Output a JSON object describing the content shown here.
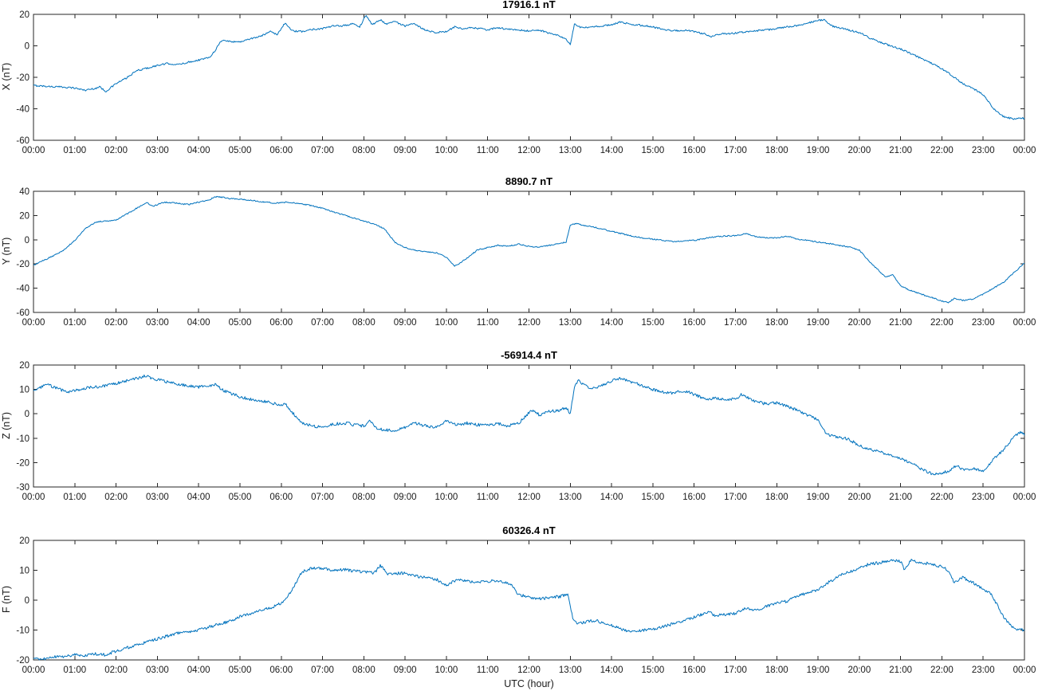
{
  "figure": {
    "xlabel": "UTC (hour)",
    "line_color": "#0072BD",
    "axis_color": "#262626",
    "text_color": "#1a1a1a",
    "background": "#ffffff"
  },
  "x_tick_labels": [
    "00:00",
    "01:00",
    "02:00",
    "03:00",
    "04:00",
    "05:00",
    "06:00",
    "07:00",
    "08:00",
    "09:00",
    "10:00",
    "11:00",
    "12:00",
    "13:00",
    "14:00",
    "15:00",
    "16:00",
    "17:00",
    "18:00",
    "19:00",
    "20:00",
    "21:00",
    "22:00",
    "23:00",
    "00:00"
  ],
  "chart_data": [
    {
      "type": "line",
      "title": "17916.1 nT",
      "ylabel": "X (nT)",
      "xlim": [
        0,
        24
      ],
      "ylim": [
        -60,
        20
      ],
      "yticks": [
        20,
        0,
        -20,
        -40,
        -60
      ],
      "grid": false,
      "legend": "none",
      "noise_amplitude": 0.55,
      "x": [
        0,
        0.25,
        0.5,
        0.75,
        1,
        1.25,
        1.5,
        1.6,
        1.75,
        2,
        2.25,
        2.5,
        2.75,
        3,
        3.25,
        3.5,
        3.75,
        4,
        4.25,
        4.4,
        4.5,
        4.6,
        4.75,
        5,
        5.25,
        5.5,
        5.75,
        5.9,
        6.1,
        6.25,
        6.5,
        6.75,
        7,
        7.25,
        7.5,
        7.75,
        7.9,
        8.05,
        8.2,
        8.4,
        8.55,
        8.75,
        9,
        9.2,
        9.5,
        9.75,
        10,
        10.2,
        10.4,
        10.6,
        10.8,
        11,
        11.2,
        11.5,
        11.75,
        12,
        12.25,
        12.5,
        12.75,
        12.9,
        13,
        13.1,
        13.25,
        13.5,
        13.75,
        14,
        14.2,
        14.5,
        14.75,
        15,
        15.25,
        15.5,
        15.75,
        16,
        16.25,
        16.4,
        16.6,
        17,
        17.25,
        17.5,
        17.75,
        18,
        18.25,
        18.5,
        18.75,
        19,
        19.15,
        19.3,
        19.5,
        19.75,
        20,
        20.25,
        20.5,
        20.75,
        21,
        21.25,
        21.5,
        21.75,
        22,
        22.25,
        22.5,
        22.75,
        23,
        23.25,
        23.5,
        23.75,
        24
      ],
      "values": [
        -25.2,
        -25.6,
        -26,
        -26.2,
        -26.8,
        -28.2,
        -27,
        -26,
        -29,
        -24,
        -20.5,
        -15.8,
        -14.2,
        -12.5,
        -11.2,
        -12,
        -10.4,
        -9,
        -7.5,
        -3,
        1.8,
        3.5,
        2.8,
        2.5,
        4.5,
        6,
        9.5,
        7,
        14.8,
        9.5,
        9,
        10.5,
        11,
        12.5,
        12.8,
        14,
        12,
        19.5,
        13.5,
        16.5,
        14,
        15.5,
        12.5,
        14,
        10,
        8.5,
        9,
        12,
        10.5,
        11.5,
        11,
        10,
        11.5,
        10.5,
        10,
        9.5,
        10,
        8,
        6,
        4,
        0.8,
        13.8,
        11.5,
        11.8,
        12.5,
        13.5,
        15,
        13.5,
        13,
        12,
        10.5,
        9.5,
        10,
        9,
        7.5,
        5.5,
        7.5,
        8,
        9,
        9.5,
        10,
        11,
        12,
        13,
        14.5,
        16,
        16.5,
        13,
        11.5,
        10,
        8.5,
        5,
        2.5,
        0,
        -2,
        -5,
        -8,
        -11,
        -14.5,
        -19,
        -24,
        -27,
        -31,
        -40,
        -45,
        -46.5,
        -46
      ]
    },
    {
      "type": "line",
      "title": "8890.7 nT",
      "ylabel": "Y (nT)",
      "xlim": [
        0,
        24
      ],
      "ylim": [
        -60,
        40
      ],
      "yticks": [
        40,
        20,
        0,
        -20,
        -40,
        -60
      ],
      "grid": false,
      "legend": "none",
      "noise_amplitude": 0.5,
      "x": [
        0,
        0.25,
        0.5,
        0.75,
        1,
        1.25,
        1.5,
        1.75,
        2,
        2.25,
        2.5,
        2.75,
        2.9,
        3.1,
        3.25,
        3.5,
        3.75,
        4,
        4.25,
        4.45,
        4.75,
        5,
        5.25,
        5.5,
        5.75,
        6,
        6.15,
        6.5,
        6.75,
        7,
        7.25,
        7.5,
        7.65,
        8,
        8.25,
        8.5,
        8.75,
        9,
        9.25,
        9.5,
        9.75,
        10,
        10.2,
        10.35,
        10.5,
        10.75,
        11,
        11.25,
        11.5,
        11.75,
        12,
        12.25,
        12.5,
        12.75,
        12.9,
        13,
        13.15,
        13.3,
        13.5,
        13.75,
        14,
        14.25,
        14.5,
        14.75,
        15,
        15.25,
        15.5,
        15.75,
        16,
        16.25,
        16.5,
        16.75,
        17,
        17.25,
        17.5,
        17.75,
        18,
        18.25,
        18.5,
        18.75,
        19,
        19.25,
        19.5,
        19.75,
        20,
        20.25,
        20.5,
        20.65,
        20.8,
        21,
        21.25,
        21.5,
        21.75,
        22,
        22.15,
        22.3,
        22.5,
        22.75,
        23,
        23.25,
        23.5,
        23.75,
        24
      ],
      "values": [
        -21,
        -17,
        -13,
        -8,
        -0.5,
        9,
        14.5,
        15.5,
        16.5,
        21,
        26,
        30.5,
        27.5,
        30.5,
        31,
        30,
        29,
        31,
        33,
        35.8,
        34,
        33.5,
        32.5,
        31.5,
        30.5,
        30.5,
        31,
        29.5,
        28,
        26,
        23,
        20.5,
        19,
        15.5,
        13,
        9,
        -2,
        -6.5,
        -8.5,
        -10,
        -10.7,
        -14.5,
        -21.5,
        -19,
        -15,
        -8.5,
        -6.5,
        -4.5,
        -5.5,
        -3.5,
        -5.5,
        -6,
        -4.5,
        -3,
        -2,
        12,
        13.5,
        12,
        11,
        9,
        7,
        5,
        3,
        1.5,
        0.5,
        -0.5,
        -1.5,
        -1,
        -0.5,
        1,
        2.5,
        3,
        3.5,
        5,
        2.5,
        1.5,
        1.5,
        3,
        0.5,
        -0.5,
        -2,
        -3,
        -4.5,
        -6,
        -8.5,
        -18,
        -26.5,
        -31,
        -28.5,
        -38,
        -42,
        -45,
        -47.5,
        -50.5,
        -52,
        -48.5,
        -50,
        -49,
        -45,
        -40,
        -35,
        -27,
        -19.5
      ]
    },
    {
      "type": "line",
      "title": "-56914.4 nT",
      "ylabel": "Z (nT)",
      "xlim": [
        0,
        24
      ],
      "ylim": [
        -30,
        20
      ],
      "yticks": [
        20,
        10,
        0,
        -10,
        -20,
        -30
      ],
      "grid": false,
      "legend": "none",
      "noise_amplitude": 0.6,
      "x": [
        0,
        0.2,
        0.35,
        0.6,
        0.8,
        1,
        1.25,
        1.5,
        1.75,
        2,
        2.25,
        2.5,
        2.7,
        3,
        3.25,
        3.5,
        3.75,
        4,
        4.25,
        4.4,
        4.6,
        4.75,
        5,
        5.25,
        5.5,
        5.75,
        6,
        6.1,
        6.3,
        6.5,
        6.75,
        7,
        7.2,
        7.4,
        7.6,
        7.75,
        8,
        8.15,
        8.3,
        8.5,
        8.75,
        9,
        9.25,
        9.5,
        9.75,
        10,
        10.25,
        10.5,
        10.75,
        11,
        11.25,
        11.5,
        11.75,
        12,
        12.1,
        12.25,
        12.5,
        12.75,
        12.9,
        13,
        13.1,
        13.2,
        13.35,
        13.5,
        13.75,
        14,
        14.2,
        14.5,
        14.75,
        15,
        15.25,
        15.5,
        15.75,
        16,
        16.25,
        16.5,
        16.75,
        17,
        17.15,
        17.5,
        17.75,
        18,
        18.25,
        18.5,
        18.75,
        19,
        19.2,
        19.5,
        19.75,
        20,
        20.25,
        20.5,
        20.75,
        21,
        21.25,
        21.5,
        21.75,
        22,
        22.2,
        22.35,
        22.5,
        22.75,
        23,
        23.15,
        23.5,
        23.75,
        23.9,
        24
      ],
      "values": [
        9.5,
        11,
        12,
        10.2,
        9,
        9.5,
        10.5,
        11,
        11.5,
        12.5,
        13.5,
        14.5,
        15.5,
        14,
        13,
        12,
        11.5,
        11,
        11.5,
        12,
        9.5,
        8.5,
        7,
        6,
        5.5,
        4.5,
        3.5,
        4,
        0,
        -3.5,
        -5,
        -5.5,
        -4.5,
        -4,
        -3.8,
        -4.5,
        -5,
        -3,
        -6,
        -6.5,
        -7,
        -5.5,
        -3.8,
        -5,
        -5.5,
        -2.8,
        -4.5,
        -3.8,
        -4.5,
        -4.5,
        -4,
        -5,
        -3.8,
        0.5,
        1.5,
        -0.5,
        1,
        1.5,
        2.5,
        0,
        11,
        13.5,
        11.5,
        10.5,
        11.5,
        13.5,
        14.5,
        13,
        11.5,
        10,
        9,
        8.5,
        9.5,
        8,
        6,
        6.5,
        6,
        6,
        8,
        5,
        4,
        4.5,
        3,
        1.5,
        -0.5,
        -2.5,
        -8.5,
        -9.5,
        -10.5,
        -13,
        -14.5,
        -15.5,
        -17,
        -18.5,
        -20,
        -22.5,
        -24.5,
        -24.5,
        -23,
        -21,
        -23,
        -22.5,
        -23.5,
        -20.5,
        -14.5,
        -9.5,
        -7.5,
        -8.5
      ]
    },
    {
      "type": "line",
      "title": "60326.4 nT",
      "ylabel": "F (nT)",
      "xlim": [
        0,
        24
      ],
      "ylim": [
        -20,
        20
      ],
      "yticks": [
        20,
        10,
        0,
        -10,
        -20
      ],
      "grid": false,
      "legend": "none",
      "noise_amplitude": 0.5,
      "x": [
        0,
        0.15,
        0.5,
        0.75,
        1,
        1.25,
        1.5,
        1.75,
        2,
        2.25,
        2.5,
        2.75,
        3,
        3.25,
        3.5,
        3.75,
        4,
        4.25,
        4.5,
        4.75,
        5,
        5.25,
        5.5,
        5.75,
        6,
        6.25,
        6.5,
        6.75,
        7,
        7.25,
        7.5,
        7.75,
        8,
        8.25,
        8.4,
        8.6,
        8.75,
        9,
        9.25,
        9.5,
        9.75,
        10,
        10.3,
        10.5,
        10.75,
        11,
        11.25,
        11.5,
        11.6,
        11.75,
        12,
        12.25,
        12.5,
        12.75,
        12.95,
        13.05,
        13.15,
        13.3,
        13.6,
        14,
        14.25,
        14.5,
        14.75,
        15,
        15.25,
        15.5,
        15.75,
        16,
        16.25,
        16.35,
        16.5,
        16.75,
        17,
        17.25,
        17.5,
        17.75,
        18,
        18.25,
        18.5,
        18.75,
        19,
        19.25,
        19.5,
        19.75,
        20,
        20.25,
        20.5,
        20.75,
        21,
        21.1,
        21.25,
        21.5,
        21.75,
        22,
        22.15,
        22.3,
        22.5,
        22.75,
        23,
        23.2,
        23.5,
        23.75,
        24
      ],
      "values": [
        -19.5,
        -20,
        -19,
        -18.8,
        -18.3,
        -18.5,
        -18,
        -18.3,
        -17,
        -16,
        -15,
        -14,
        -13,
        -12,
        -11,
        -10.5,
        -10,
        -9,
        -8,
        -7,
        -5.5,
        -4.5,
        -3.5,
        -2.5,
        -1,
        3,
        9.5,
        10.8,
        10.5,
        10,
        10.2,
        9.8,
        9.5,
        9,
        11.5,
        8.5,
        9,
        9,
        8,
        7.5,
        7,
        5,
        7,
        6.5,
        6,
        6.3,
        6.5,
        5.5,
        4.8,
        1.8,
        1,
        0.5,
        0.8,
        1.2,
        2,
        -5.5,
        -7.5,
        -7.5,
        -6.8,
        -8.4,
        -9.7,
        -10.6,
        -10.1,
        -9.7,
        -8.8,
        -7.9,
        -7,
        -5.7,
        -4.5,
        -3.5,
        -5.2,
        -4.8,
        -4.4,
        -2.5,
        -3.5,
        -2,
        -1,
        -0.4,
        1.4,
        2.5,
        3.6,
        5.9,
        8.1,
        9.4,
        10.8,
        12.1,
        12.5,
        13.4,
        13,
        10,
        13.4,
        12.5,
        12.1,
        11.2,
        9.9,
        5.8,
        7.6,
        5.9,
        3.6,
        1.9,
        -5.7,
        -9.7,
        -10
      ]
    }
  ]
}
